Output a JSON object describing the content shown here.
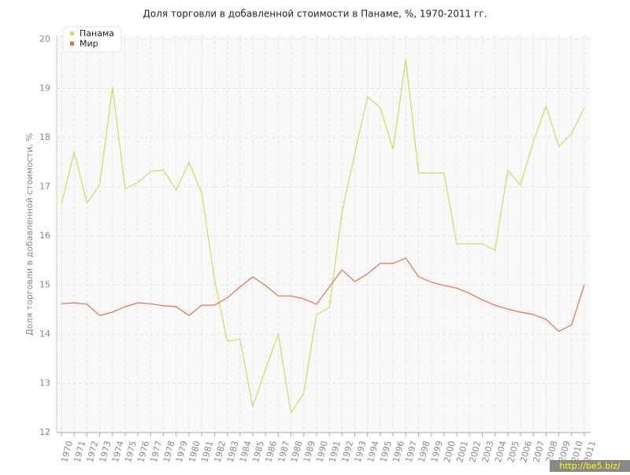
{
  "chart_data": {
    "type": "line",
    "title": "Доля торговли в добавленной стоимости в Панаме, %, 1970-2011 гг.",
    "y_label": "Доля торговли в добавленной стоимости, %",
    "watermark": "http://be5.biz/",
    "categories": [
      "1970",
      "1971",
      "1972",
      "1973",
      "1974",
      "1975",
      "1976",
      "1977",
      "1978",
      "1979",
      "1980",
      "1981",
      "1982",
      "1983",
      "1984",
      "1985",
      "1986",
      "1987",
      "1988",
      "1989",
      "1990",
      "1991",
      "1992",
      "1993",
      "1994",
      "1995",
      "1996",
      "1997",
      "1998",
      "1999",
      "2000",
      "2001",
      "2002",
      "2003",
      "2004",
      "2005",
      "2006",
      "2007",
      "2008",
      "2009",
      "2010",
      "2011"
    ],
    "series": [
      {
        "name": "Панама",
        "color": "#c5e05a",
        "values": [
          16.64,
          17.71,
          16.67,
          17.04,
          19.02,
          16.96,
          17.09,
          17.31,
          17.34,
          16.93,
          17.5,
          16.88,
          15.12,
          13.86,
          13.9,
          12.53,
          13.28,
          14.0,
          12.4,
          12.8,
          14.4,
          14.54,
          16.48,
          17.68,
          18.83,
          18.61,
          17.76,
          19.6,
          17.28,
          17.28,
          17.28,
          15.84,
          15.84,
          15.84,
          15.71,
          17.33,
          17.04,
          17.92,
          18.64,
          17.82,
          18.08,
          18.61
        ]
      },
      {
        "name": "Мир",
        "color": "#e0714a",
        "values": [
          14.62,
          14.64,
          14.61,
          14.38,
          14.45,
          14.56,
          14.64,
          14.62,
          14.58,
          14.56,
          14.38,
          14.59,
          14.59,
          14.74,
          14.96,
          15.17,
          14.99,
          14.78,
          14.78,
          14.72,
          14.61,
          14.96,
          15.31,
          15.07,
          15.23,
          15.44,
          15.44,
          15.55,
          15.17,
          15.06,
          14.99,
          14.94,
          14.83,
          14.7,
          14.59,
          14.51,
          14.45,
          14.4,
          14.3,
          14.06,
          14.19,
          15.01
        ]
      }
    ],
    "ylim": [
      12,
      20
    ],
    "yticks": [
      12,
      13,
      14,
      15,
      16,
      17,
      18,
      19,
      20
    ],
    "grid": true,
    "legend": "top-left"
  }
}
